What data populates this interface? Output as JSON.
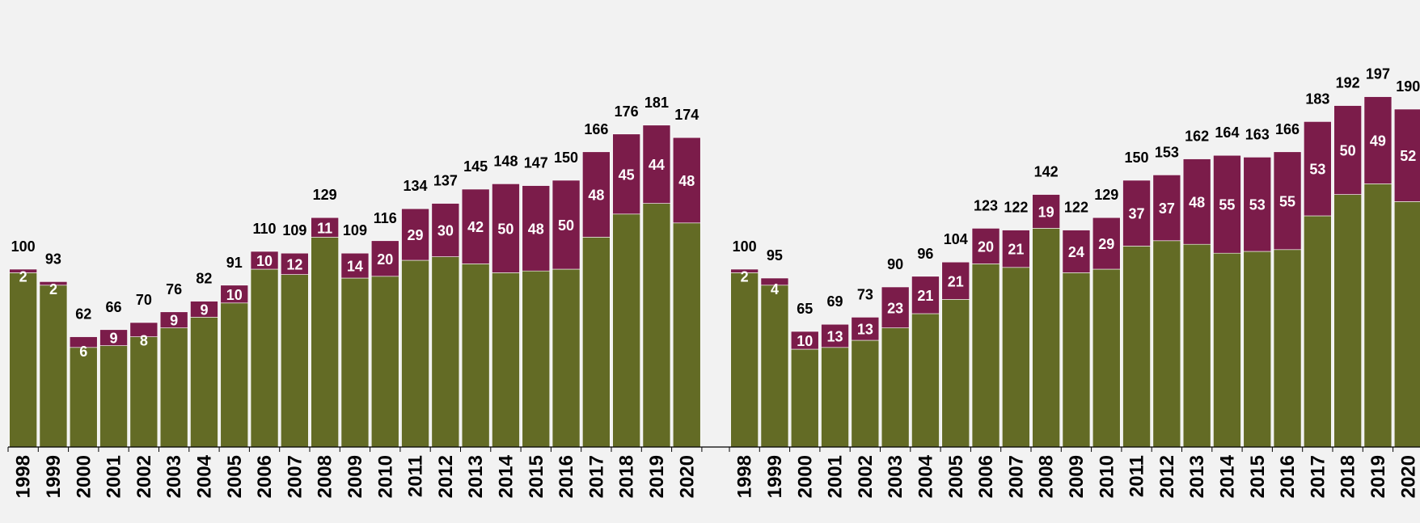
{
  "colors": {
    "background": "#f2f2f2",
    "base": "#636b25",
    "top": "#7b1c4a",
    "axis": "#000000"
  },
  "chart_data": [
    {
      "type": "bar",
      "stacked": true,
      "categories": [
        "1998",
        "1999",
        "2000",
        "2001",
        "2002",
        "2003",
        "2004",
        "2005",
        "2006",
        "2007",
        "2008",
        "2009",
        "2010",
        "2011",
        "2012",
        "2013",
        "2014",
        "2015",
        "2016",
        "2017",
        "2018",
        "2019",
        "2020"
      ],
      "series": [
        {
          "values": [
            98,
            91,
            56,
            57,
            62,
            67,
            73,
            81,
            100,
            97,
            118,
            95,
            96,
            105,
            107,
            103,
            98,
            99,
            100,
            118,
            131,
            137,
            126
          ]
        },
        {
          "values": [
            2,
            2,
            6,
            9,
            8,
            9,
            9,
            10,
            10,
            12,
            11,
            14,
            20,
            29,
            30,
            42,
            50,
            48,
            50,
            48,
            45,
            44,
            48
          ]
        }
      ],
      "totals": [
        100,
        93,
        62,
        66,
        70,
        76,
        82,
        91,
        110,
        109,
        129,
        109,
        116,
        134,
        137,
        145,
        148,
        147,
        150,
        166,
        176,
        181,
        174
      ],
      "ylim": [
        0,
        200
      ],
      "grid": false,
      "legend": "none"
    },
    {
      "type": "bar",
      "stacked": true,
      "categories": [
        "1998",
        "1999",
        "2000",
        "2001",
        "2002",
        "2003",
        "2004",
        "2005",
        "2006",
        "2007",
        "2008",
        "2009",
        "2010",
        "2011",
        "2012",
        "2013",
        "2014",
        "2015",
        "2016",
        "2017",
        "2018",
        "2019",
        "2020"
      ],
      "series": [
        {
          "values": [
            98,
            91,
            55,
            56,
            60,
            67,
            75,
            83,
            103,
            101,
            123,
            98,
            100,
            113,
            116,
            114,
            109,
            110,
            111,
            130,
            142,
            148,
            138
          ]
        },
        {
          "values": [
            2,
            4,
            10,
            13,
            13,
            23,
            21,
            21,
            20,
            21,
            19,
            24,
            29,
            37,
            37,
            48,
            55,
            53,
            55,
            53,
            50,
            49,
            52
          ]
        }
      ],
      "totals": [
        100,
        95,
        65,
        69,
        73,
        90,
        96,
        104,
        123,
        122,
        142,
        122,
        129,
        150,
        153,
        162,
        164,
        163,
        166,
        183,
        192,
        197,
        190
      ],
      "ylim": [
        0,
        200
      ],
      "grid": false,
      "legend": "none"
    }
  ]
}
